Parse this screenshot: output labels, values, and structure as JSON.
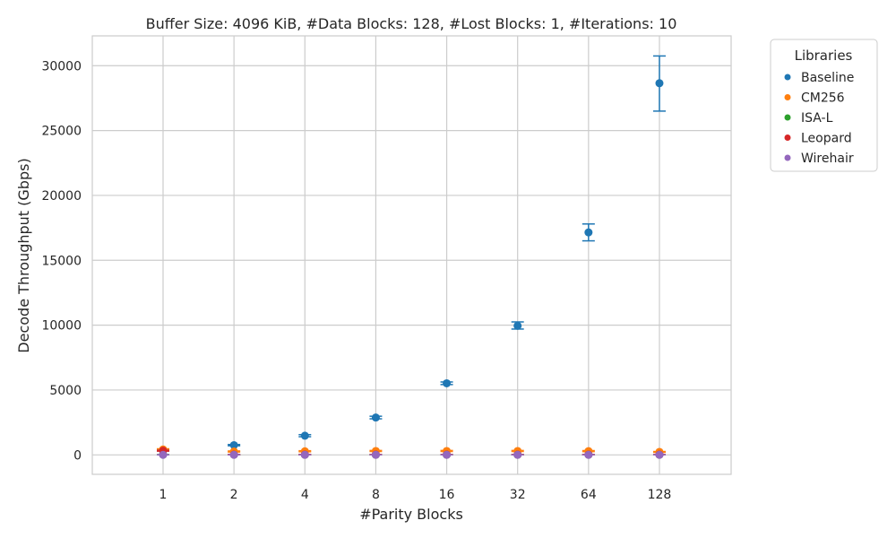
{
  "chart_data": {
    "type": "scatter",
    "title": "Buffer Size: 4096 KiB, #Data Blocks: 128, #Lost Blocks: 1, #Iterations: 10",
    "xlabel": "#Parity Blocks",
    "ylabel": "Decode Throughput (Gbps)",
    "categories": [
      "1",
      "2",
      "4",
      "8",
      "16",
      "32",
      "64",
      "128"
    ],
    "yticks": [
      0,
      5000,
      10000,
      15000,
      20000,
      25000,
      30000
    ],
    "ylim": [
      -1500,
      32300
    ],
    "grid": true,
    "legend": {
      "title": "Libraries",
      "placement": "outside-top-right"
    },
    "series": [
      {
        "name": "Baseline",
        "color": "#1f77b4",
        "values": [
          350,
          750,
          1480,
          2880,
          5520,
          9950,
          17150,
          28650
        ],
        "error_low": [
          300,
          700,
          1400,
          2780,
          5420,
          9700,
          16500,
          26500
        ],
        "error_high": [
          400,
          800,
          1560,
          2980,
          5620,
          10250,
          17800,
          30750
        ]
      },
      {
        "name": "CM256",
        "color": "#ff7f0e",
        "values": [
          420,
          260,
          280,
          300,
          300,
          300,
          290,
          230
        ],
        "error_low": [
          370,
          220,
          240,
          260,
          260,
          260,
          250,
          200
        ],
        "error_high": [
          470,
          300,
          320,
          340,
          340,
          340,
          330,
          260
        ]
      },
      {
        "name": "ISA-L",
        "color": "#2ca02c",
        "values": [
          15,
          12,
          10,
          10,
          10,
          10,
          10,
          10
        ],
        "error_low": [
          10,
          8,
          6,
          6,
          6,
          6,
          6,
          6
        ],
        "error_high": [
          20,
          16,
          14,
          14,
          14,
          14,
          14,
          14
        ]
      },
      {
        "name": "Leopard",
        "color": "#d62728",
        "values": [
          320,
          20,
          20,
          20,
          20,
          20,
          20,
          20
        ],
        "error_low": [
          290,
          15,
          15,
          15,
          15,
          15,
          15,
          15
        ],
        "error_high": [
          350,
          25,
          25,
          25,
          25,
          25,
          25,
          25
        ]
      },
      {
        "name": "Wirehair",
        "color": "#9467bd",
        "values": [
          5,
          5,
          5,
          5,
          5,
          5,
          5,
          5
        ],
        "error_low": [
          2,
          2,
          2,
          2,
          2,
          2,
          2,
          2
        ],
        "error_high": [
          8,
          8,
          8,
          8,
          8,
          8,
          8,
          8
        ]
      }
    ]
  }
}
